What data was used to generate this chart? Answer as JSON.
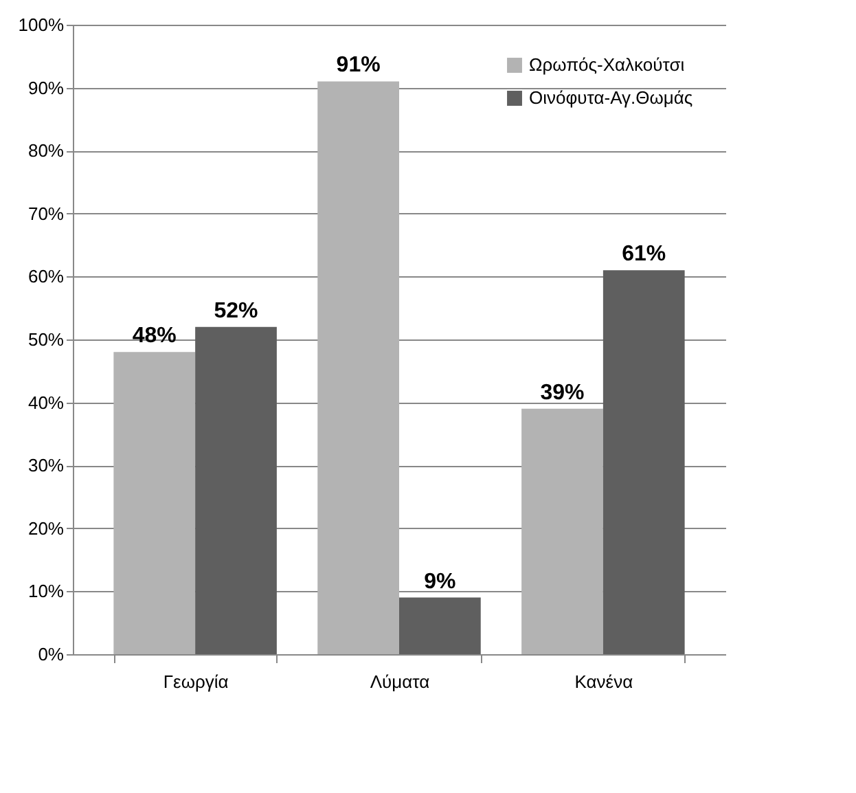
{
  "chart_data": {
    "type": "bar",
    "categories": [
      "Γεωργία",
      "Λύματα",
      "Κανένα"
    ],
    "series": [
      {
        "name": "Ωρωπός-Χαλκούτσι",
        "color": "#b3b3b3",
        "values": [
          48,
          91,
          39
        ],
        "value_labels": [
          "48%",
          "91%",
          "39%"
        ]
      },
      {
        "name": "Οινόφυτα-Αγ.Θωμάς",
        "color": "#5f5f5f",
        "values": [
          52,
          9,
          61
        ],
        "value_labels": [
          "52%",
          "9%",
          "61%"
        ]
      }
    ],
    "ylim": [
      0,
      100
    ],
    "yticks": [
      {
        "value": 0,
        "label": "0%"
      },
      {
        "value": 10,
        "label": "10%"
      },
      {
        "value": 20,
        "label": "20%"
      },
      {
        "value": 30,
        "label": "30%"
      },
      {
        "value": 40,
        "label": "40%"
      },
      {
        "value": 50,
        "label": "50%"
      },
      {
        "value": 60,
        "label": "60%"
      },
      {
        "value": 70,
        "label": "70%"
      },
      {
        "value": 80,
        "label": "80%"
      },
      {
        "value": 90,
        "label": "90%"
      },
      {
        "value": 100,
        "label": "100%"
      }
    ],
    "grid": "y",
    "legend": "top right"
  }
}
